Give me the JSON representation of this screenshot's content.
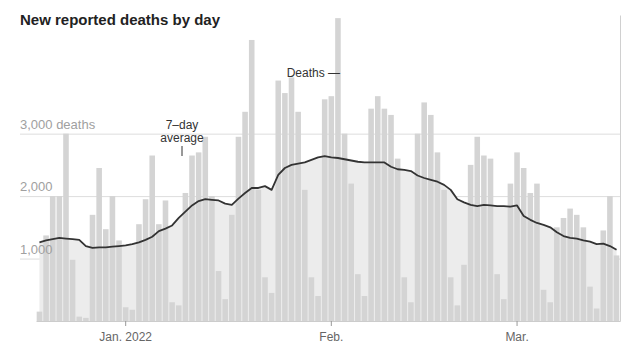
{
  "chart_data": {
    "type": "bar",
    "title": "New reported deaths by day",
    "annotations": [
      {
        "text": "Deaths —"
      },
      {
        "text": "7–day average"
      }
    ],
    "categories": [
      null,
      null,
      null,
      null,
      null,
      null,
      null,
      null,
      null,
      null,
      null,
      null,
      null,
      "Jan. 2022",
      null,
      null,
      null,
      null,
      null,
      null,
      null,
      null,
      null,
      null,
      null,
      null,
      null,
      null,
      null,
      null,
      null,
      null,
      null,
      null,
      null,
      null,
      null,
      null,
      null,
      null,
      null,
      null,
      null,
      null,
      "Feb.",
      null,
      null,
      null,
      null,
      null,
      null,
      null,
      null,
      null,
      null,
      null,
      null,
      null,
      null,
      null,
      null,
      null,
      null,
      null,
      null,
      null,
      null,
      null,
      null,
      null,
      null,
      null,
      "Mar.",
      null,
      null,
      null,
      null,
      null,
      null,
      null,
      null,
      null,
      null,
      null,
      null,
      null,
      null,
      null
    ],
    "series": [
      {
        "type": "bar",
        "color": "#d4d4d4",
        "values": [
          150,
          1370,
          2000,
          2000,
          3000,
          980,
          70,
          50,
          1700,
          2450,
          1470,
          2000,
          1290,
          220,
          180,
          1550,
          1950,
          2650,
          1550,
          1930,
          300,
          250,
          2050,
          2650,
          2700,
          2950,
          2000,
          800,
          350,
          1700,
          2950,
          3350,
          4500,
          2100,
          700,
          450,
          3850,
          3650,
          3900,
          3350,
          2100,
          700,
          400,
          3550,
          3600,
          4850,
          3000,
          2200,
          750,
          400,
          3400,
          3600,
          3400,
          3300,
          2600,
          700,
          300,
          3000,
          3500,
          3300,
          2700,
          2100,
          700,
          250,
          900,
          2500,
          2950,
          2650,
          2600,
          750,
          350,
          2200,
          2700,
          2450,
          2050,
          2200,
          500,
          300,
          1500,
          1650,
          1800,
          1700,
          1500,
          550,
          200,
          1450,
          2000,
          1050
        ]
      },
      {
        "type": "line",
        "color": "#333333",
        "values": [
          1260,
          1290,
          1310,
          1330,
          1320,
          1310,
          1300,
          1200,
          1170,
          1180,
          1180,
          1190,
          1200,
          1210,
          1230,
          1260,
          1300,
          1350,
          1440,
          1480,
          1530,
          1650,
          1750,
          1850,
          1920,
          1950,
          1940,
          1930,
          1880,
          1860,
          1960,
          2050,
          2130,
          2130,
          2160,
          2100,
          2340,
          2450,
          2500,
          2520,
          2540,
          2580,
          2620,
          2640,
          2620,
          2610,
          2590,
          2570,
          2550,
          2540,
          2540,
          2540,
          2540,
          2470,
          2430,
          2420,
          2400,
          2330,
          2290,
          2260,
          2230,
          2180,
          2100,
          1950,
          1900,
          1860,
          1840,
          1860,
          1850,
          1840,
          1840,
          1830,
          1850,
          1680,
          1620,
          1570,
          1540,
          1500,
          1420,
          1360,
          1330,
          1320,
          1290,
          1270,
          1230,
          1240,
          1200,
          1140
        ]
      }
    ],
    "ylim": [
      0,
      4900
    ],
    "yticks": [
      {
        "value": 1000,
        "label": "1,000"
      },
      {
        "value": 2000,
        "label": "2,000"
      },
      {
        "value": 3000,
        "label": "3,000 deaths"
      }
    ],
    "grid": true
  }
}
